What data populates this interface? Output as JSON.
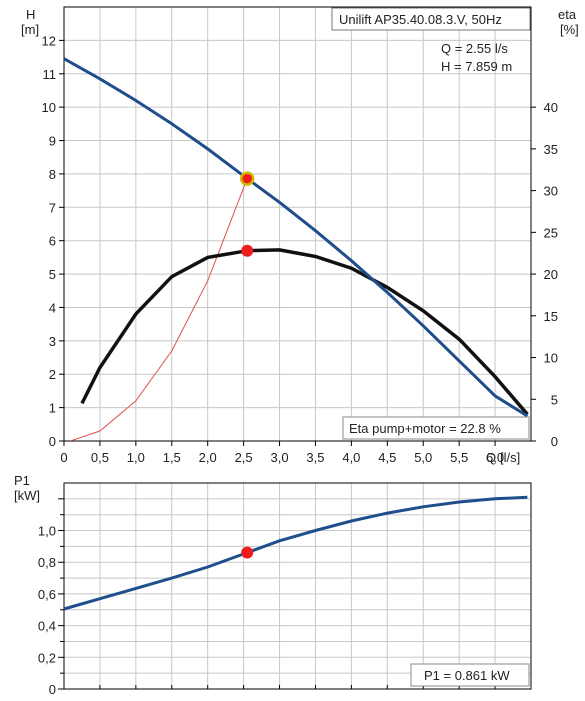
{
  "colors": {
    "head_curve": "#1f4e8c",
    "eta_curve": "#111111",
    "system_curve": "#e05050",
    "p1_curve": "#1f4e8c",
    "duty_point": "#ee1c1c",
    "duty_point_ring": "#d4b800",
    "grid": "#c8c8c8"
  },
  "chart_data": [
    {
      "type": "line",
      "title": "Unilift AP35.40.08.3.V, 50Hz",
      "ylabel_name": "H",
      "ylabel_unit": "[m]",
      "y2label_name": "eta",
      "y2label_unit": "[%]",
      "xlabel_name": "Q",
      "xlabel_unit": "[l/s]",
      "xlim": [
        0,
        6.5
      ],
      "ylim": [
        0,
        13
      ],
      "y2lim": [
        0,
        52
      ],
      "x_ticks": [
        "0",
        "0,5",
        "1,0",
        "1,5",
        "2,0",
        "2,5",
        "3,0",
        "3,5",
        "4,0",
        "4,5",
        "5,0",
        "5,5",
        "6,0"
      ],
      "y_ticks": [
        "0",
        "1",
        "2",
        "3",
        "4",
        "5",
        "6",
        "7",
        "8",
        "9",
        "10",
        "11",
        "12"
      ],
      "y2_ticks": [
        "0",
        "5",
        "10",
        "15",
        "20",
        "25",
        "30",
        "35",
        "40"
      ],
      "grid": true,
      "series": [
        {
          "key": "head",
          "axis": "left",
          "x": [
            0,
            0.5,
            1.0,
            1.5,
            2.0,
            2.55,
            3.0,
            3.5,
            4.0,
            4.5,
            5.0,
            5.5,
            6.0,
            6.45
          ],
          "y": [
            11.45,
            10.85,
            10.2,
            9.5,
            8.75,
            7.86,
            7.15,
            6.3,
            5.4,
            4.45,
            3.45,
            2.4,
            1.35,
            0.75
          ]
        },
        {
          "key": "eta",
          "axis": "right",
          "x": [
            0.25,
            0.5,
            1.0,
            1.5,
            2.0,
            2.55,
            3.0,
            3.5,
            4.0,
            4.5,
            5.0,
            5.5,
            6.0,
            6.45
          ],
          "y": [
            4.5,
            8.8,
            15.2,
            19.7,
            22.0,
            22.8,
            22.9,
            22.1,
            20.7,
            18.4,
            15.6,
            12.2,
            7.7,
            3.2
          ]
        },
        {
          "key": "system",
          "axis": "left",
          "x": [
            0.1,
            0.5,
            1.0,
            1.5,
            2.0,
            2.55
          ],
          "y": [
            0.01,
            0.3,
            1.2,
            2.7,
            4.8,
            7.86
          ]
        }
      ],
      "duty_point": {
        "q": 2.55,
        "h": 7.859,
        "eta": 22.8
      },
      "readouts": [
        "Q = 2.55 l/s",
        "H = 7.859 m"
      ],
      "annotation": "Eta pump+motor = 22.8 %"
    },
    {
      "type": "line",
      "ylabel_name": "P1",
      "ylabel_unit": "[kW]",
      "xlim": [
        0,
        6.5
      ],
      "ylim": [
        0,
        1.3
      ],
      "y_ticks": [
        "0",
        "0,2",
        "0,4",
        "0,6",
        "0,8",
        "1,0"
      ],
      "grid": true,
      "series": [
        {
          "key": "p1",
          "axis": "left",
          "x": [
            0,
            0.5,
            1.0,
            1.5,
            2.0,
            2.55,
            3.0,
            3.5,
            4.0,
            4.5,
            5.0,
            5.5,
            6.0,
            6.45
          ],
          "y": [
            0.505,
            0.57,
            0.635,
            0.7,
            0.77,
            0.861,
            0.935,
            1.0,
            1.06,
            1.11,
            1.15,
            1.18,
            1.2,
            1.21
          ]
        }
      ],
      "duty_point": {
        "q": 2.55,
        "p1": 0.861
      },
      "annotation": "P1 = 0.861 kW"
    }
  ]
}
